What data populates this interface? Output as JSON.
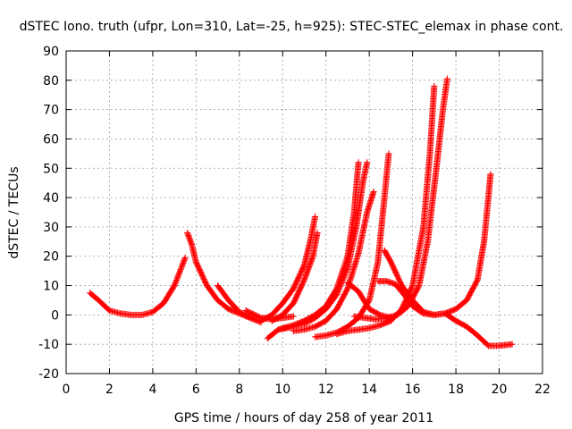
{
  "chart_data": {
    "type": "scatter",
    "title": "dSTEC Iono. truth (ufpr, Lon=310, Lat=-25, h=925): STEC-STEC_elemax in phase cont.",
    "xlabel": "GPS time / hours of day 258 of year 2011",
    "ylabel": "dSTEC  / TECUs",
    "xlim": [
      0,
      22
    ],
    "ylim": [
      -20,
      90
    ],
    "xticks": [
      0,
      2,
      4,
      6,
      8,
      10,
      12,
      14,
      16,
      18,
      20,
      22
    ],
    "yticks": [
      -20,
      -10,
      0,
      10,
      20,
      30,
      40,
      50,
      60,
      70,
      80,
      90
    ],
    "grid": true,
    "marker": "+",
    "color": "#ff0000",
    "series": [
      {
        "points": [
          [
            1.1,
            7.5
          ],
          [
            1.5,
            5
          ],
          [
            2,
            1.5
          ],
          [
            2.5,
            0.5
          ],
          [
            3,
            0
          ],
          [
            3.5,
            0
          ],
          [
            4,
            1
          ],
          [
            4.5,
            4
          ],
          [
            5,
            10
          ],
          [
            5.5,
            19.5
          ]
        ]
      },
      {
        "points": [
          [
            5.6,
            28
          ],
          [
            5.8,
            24
          ],
          [
            6,
            18
          ],
          [
            6.5,
            10
          ],
          [
            7,
            5
          ],
          [
            7.5,
            2
          ],
          [
            8,
            0.5
          ],
          [
            8.5,
            -1
          ],
          [
            9,
            -2.5
          ]
        ]
      },
      {
        "points": [
          [
            7,
            10
          ],
          [
            7.5,
            5
          ],
          [
            8,
            1
          ],
          [
            8.5,
            -1
          ]
        ]
      },
      {
        "points": [
          [
            8.3,
            1.5
          ],
          [
            9,
            -1
          ],
          [
            9.5,
            -1.5
          ],
          [
            10,
            -1
          ],
          [
            10.5,
            -0.5
          ]
        ]
      },
      {
        "points": [
          [
            9,
            -2
          ],
          [
            9.5,
            0
          ],
          [
            10,
            4
          ],
          [
            10.5,
            9
          ],
          [
            11,
            17
          ],
          [
            11.3,
            26
          ],
          [
            11.5,
            33.5
          ]
        ]
      },
      {
        "points": [
          [
            9.5,
            -2
          ],
          [
            10,
            0
          ],
          [
            10.5,
            4
          ],
          [
            11,
            12
          ],
          [
            11.4,
            20
          ],
          [
            11.6,
            28
          ]
        ]
      },
      {
        "points": [
          [
            9.3,
            -8
          ],
          [
            9.8,
            -5
          ],
          [
            10.5,
            -3.5
          ],
          [
            11,
            -2
          ],
          [
            11.5,
            0
          ],
          [
            12,
            3
          ],
          [
            12.5,
            9
          ],
          [
            13,
            20
          ],
          [
            13.3,
            35
          ],
          [
            13.5,
            52
          ]
        ]
      },
      {
        "points": [
          [
            9.8,
            -5
          ],
          [
            10.5,
            -4
          ],
          [
            11,
            -3
          ],
          [
            11.5,
            -1
          ],
          [
            12,
            2
          ],
          [
            12.5,
            7
          ],
          [
            13,
            16
          ],
          [
            13.4,
            30
          ],
          [
            13.7,
            45
          ],
          [
            13.9,
            52
          ]
        ]
      },
      {
        "points": [
          [
            10.5,
            -5.5
          ],
          [
            11,
            -5
          ],
          [
            11.5,
            -4
          ],
          [
            12,
            -2
          ],
          [
            12.5,
            2
          ],
          [
            13,
            9
          ],
          [
            13.5,
            21
          ],
          [
            13.9,
            35
          ],
          [
            14.2,
            42
          ]
        ]
      },
      {
        "points": [
          [
            11.5,
            -7.5
          ],
          [
            12,
            -7
          ],
          [
            12.5,
            -6
          ],
          [
            13,
            -4
          ],
          [
            13.5,
            -1
          ],
          [
            14,
            5
          ],
          [
            14.4,
            18
          ],
          [
            14.7,
            40
          ],
          [
            14.9,
            55
          ]
        ]
      },
      {
        "points": [
          [
            12.5,
            -6.5
          ],
          [
            13,
            -5.5
          ],
          [
            13.5,
            -5
          ],
          [
            14,
            -4.5
          ],
          [
            14.5,
            -3.5
          ],
          [
            15,
            -2
          ],
          [
            15.5,
            2
          ],
          [
            16,
            10
          ],
          [
            16.5,
            30
          ],
          [
            16.8,
            55
          ],
          [
            17,
            78
          ]
        ]
      },
      {
        "points": [
          [
            13.3,
            -0.5
          ],
          [
            13.8,
            -1
          ],
          [
            14.3,
            -1.5
          ],
          [
            14.8,
            -1
          ],
          [
            15.3,
            0
          ],
          [
            15.8,
            3
          ],
          [
            16.3,
            10
          ],
          [
            16.7,
            25
          ],
          [
            17.1,
            50
          ],
          [
            17.4,
            70
          ],
          [
            17.6,
            80.5
          ]
        ]
      },
      {
        "points": [
          [
            13,
            11
          ],
          [
            13.5,
            8
          ],
          [
            14,
            2
          ],
          [
            14.5,
            0
          ],
          [
            15,
            -1
          ]
        ]
      },
      {
        "points": [
          [
            14.7,
            22
          ],
          [
            15,
            18
          ],
          [
            15.5,
            10
          ],
          [
            16,
            5
          ],
          [
            16.5,
            1
          ],
          [
            17,
            0
          ],
          [
            17.5,
            0.5
          ],
          [
            18,
            -2
          ],
          [
            18.5,
            -4
          ],
          [
            19,
            -7
          ],
          [
            19.5,
            -10.5
          ],
          [
            20,
            -10.5
          ],
          [
            20.6,
            -10
          ]
        ]
      },
      {
        "points": [
          [
            14.4,
            11.5
          ],
          [
            14.8,
            11.5
          ],
          [
            15.2,
            10.5
          ],
          [
            15.6,
            7
          ],
          [
            16,
            3
          ],
          [
            16.5,
            0.5
          ],
          [
            17,
            0
          ],
          [
            17.5,
            0.5
          ],
          [
            18,
            2
          ],
          [
            18.5,
            5
          ],
          [
            19,
            12
          ],
          [
            19.3,
            25
          ],
          [
            19.5,
            40
          ],
          [
            19.6,
            48
          ]
        ]
      }
    ]
  }
}
